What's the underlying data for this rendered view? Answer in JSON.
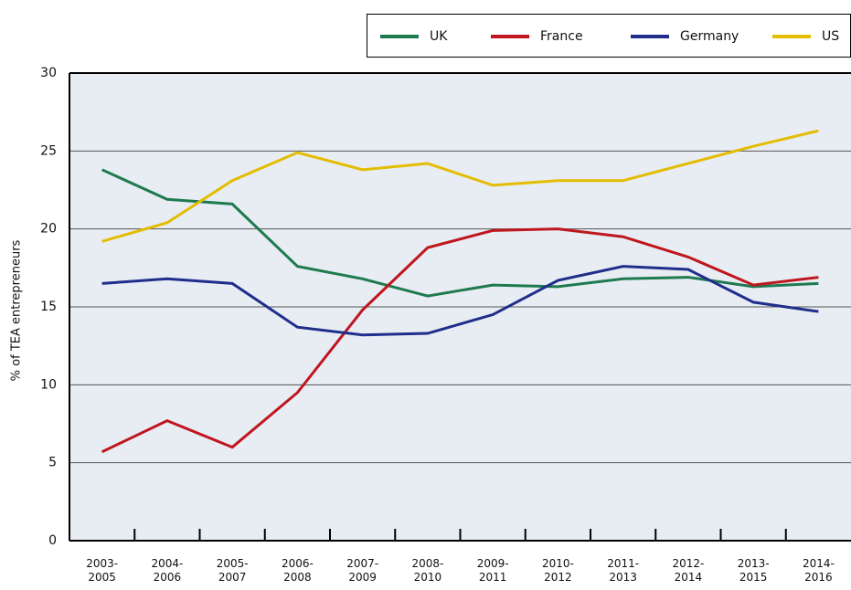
{
  "chart_data": {
    "type": "line",
    "categories": [
      "2003-2005",
      "2004-2006",
      "2005-2007",
      "2006-2008",
      "2007-2009",
      "2008-2010",
      "2009-2011",
      "2010-2012",
      "2011-2013",
      "2012-2014",
      "2013-2015",
      "2014-2016"
    ],
    "y_label": "% of TEA entrepreneurs",
    "series": [
      {
        "name": "UK",
        "color": "#1e7a4f",
        "values": [
          23.8,
          21.9,
          21.6,
          17.6,
          16.8,
          15.7,
          16.4,
          16.3,
          16.8,
          16.9,
          16.3,
          16.5
        ]
      },
      {
        "name": "France",
        "color": "#c0161e",
        "values": [
          5.7,
          7.7,
          6.0,
          9.5,
          14.8,
          18.8,
          19.9,
          20.0,
          19.5,
          18.2,
          16.4,
          16.9
        ]
      },
      {
        "name": "Germany",
        "color": "#1f2e8a",
        "values": [
          16.5,
          16.8,
          16.5,
          13.7,
          13.2,
          13.3,
          14.5,
          16.7,
          17.6,
          17.4,
          15.3,
          14.7
        ]
      },
      {
        "name": "US",
        "color": "#e3bd00",
        "values": [
          19.2,
          20.4,
          23.1,
          24.9,
          23.8,
          24.2,
          22.8,
          23.1,
          23.1,
          24.2,
          25.3,
          26.3
        ]
      }
    ],
    "ylim": [
      0,
      30
    ],
    "yticks": [
      0,
      5,
      10,
      15,
      20,
      25,
      30
    ],
    "grid": true
  }
}
